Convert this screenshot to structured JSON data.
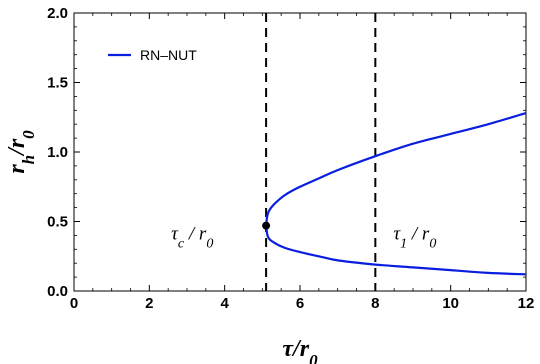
{
  "chart_data": {
    "type": "line",
    "title": "",
    "xlabel": {
      "main": "τ/r",
      "sub": "0"
    },
    "ylabel": {
      "main": "r",
      "sub1": "h",
      "mid": "/r",
      "sub2": "0"
    },
    "xlim": [
      0,
      12
    ],
    "ylim": [
      0,
      2
    ],
    "xticks": [
      0,
      2,
      4,
      6,
      8,
      10,
      12
    ],
    "yticks": [
      0.0,
      0.5,
      1.0,
      1.5,
      2.0
    ],
    "xtick_labels": [
      "0",
      "2",
      "4",
      "6",
      "8",
      "10",
      "12"
    ],
    "ytick_labels": [
      "0.0",
      "0.5",
      "1.0",
      "1.5",
      "2.0"
    ],
    "grid": false,
    "legend_position": "top-left",
    "series": [
      {
        "name": "RN–NUT",
        "color": "#0a1ee0",
        "upper_branch": {
          "x": [
            5.1,
            5.15,
            5.3,
            5.6,
            6.0,
            6.5,
            7.0,
            8.0,
            9.0,
            10.0,
            11.0,
            12.0
          ],
          "y": [
            0.47,
            0.56,
            0.62,
            0.69,
            0.75,
            0.81,
            0.87,
            0.97,
            1.06,
            1.13,
            1.2,
            1.28
          ]
        },
        "lower_branch": {
          "x": [
            5.1,
            5.15,
            5.3,
            5.6,
            6.0,
            6.5,
            7.0,
            8.0,
            9.0,
            10.0,
            11.0,
            12.0
          ],
          "y": [
            0.47,
            0.39,
            0.35,
            0.31,
            0.28,
            0.25,
            0.22,
            0.19,
            0.17,
            0.15,
            0.13,
            0.12
          ]
        }
      }
    ],
    "critical_point": {
      "x": 5.1,
      "y": 0.47
    },
    "vlines": [
      {
        "x": 5.1,
        "style": "dashed",
        "label": {
          "main": "τ",
          "sub": "c",
          "rest": " / r",
          "sub2": "0"
        }
      },
      {
        "x": 8.0,
        "style": "dashed",
        "label": {
          "main": "τ",
          "sub": "1",
          "rest": " / r",
          "sub2": "0"
        }
      }
    ]
  }
}
